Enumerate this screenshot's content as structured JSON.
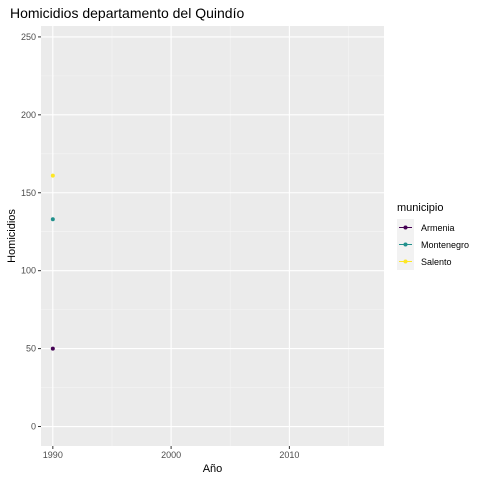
{
  "chart_data": {
    "type": "line",
    "title": "Homicidios departamento del Quindío",
    "xlabel": "Año",
    "ylabel": "Homicidios",
    "xlim": [
      1989,
      2018
    ],
    "ylim": [
      -12.5,
      257
    ],
    "x_ticks": [
      1990,
      2000,
      2010
    ],
    "x_minor_ticks": [
      1995,
      2005,
      2015
    ],
    "y_ticks": [
      0,
      50,
      100,
      150,
      200,
      250
    ],
    "y_minor_ticks": [
      25,
      75,
      125,
      175,
      225
    ],
    "panel_background": "#EBEBEB",
    "grid": true,
    "legend": {
      "title": "municipio",
      "position": "right"
    },
    "series": [
      {
        "name": "Armenia",
        "color": "#440154",
        "x": [
          1990
        ],
        "y": [
          50
        ]
      },
      {
        "name": "Montenegro",
        "color": "#21908C",
        "x": [
          1990
        ],
        "y": [
          133
        ]
      },
      {
        "name": "Salento",
        "color": "#FDE725",
        "x": [
          1990
        ],
        "y": [
          161
        ]
      }
    ]
  }
}
